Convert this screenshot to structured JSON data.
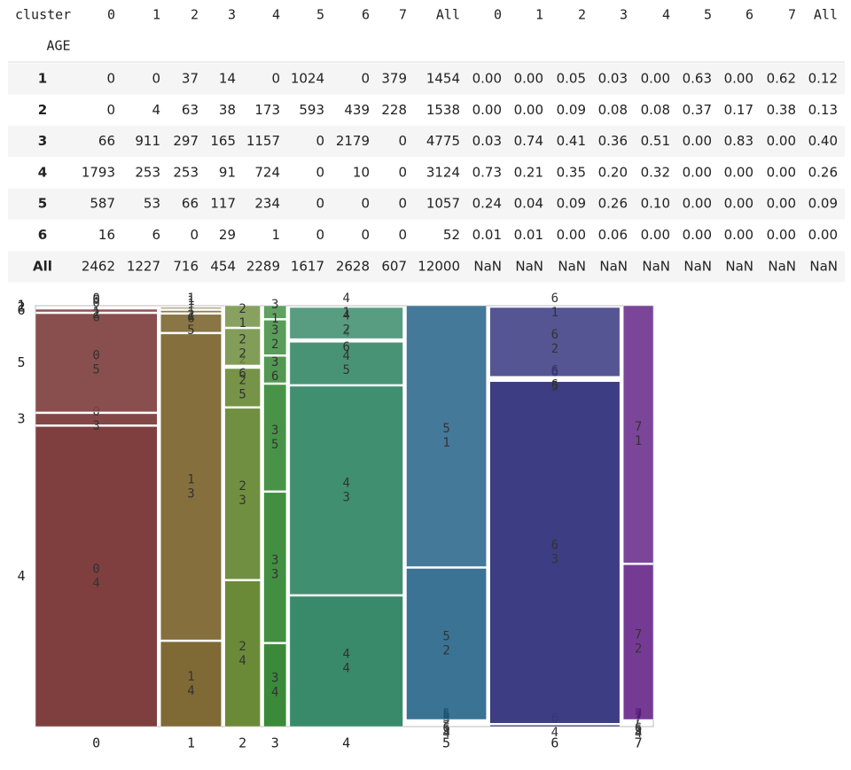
{
  "table": {
    "header": [
      "cluster",
      "0",
      "1",
      "2",
      "3",
      "4",
      "5",
      "6",
      "7",
      "All",
      "0",
      "1",
      "2",
      "3",
      "4",
      "5",
      "6",
      "7",
      "All"
    ],
    "index_name": "AGE",
    "rows": [
      {
        "label": "1",
        "cells": [
          0,
          0,
          37,
          14,
          0,
          1024,
          0,
          379,
          1454,
          "0.00",
          "0.00",
          "0.05",
          "0.03",
          "0.00",
          "0.63",
          "0.00",
          "0.62",
          "0.12"
        ]
      },
      {
        "label": "2",
        "cells": [
          0,
          4,
          63,
          38,
          173,
          593,
          439,
          228,
          1538,
          "0.00",
          "0.00",
          "0.09",
          "0.08",
          "0.08",
          "0.37",
          "0.17",
          "0.38",
          "0.13"
        ]
      },
      {
        "label": "3",
        "cells": [
          66,
          911,
          297,
          165,
          1157,
          0,
          2179,
          0,
          4775,
          "0.03",
          "0.74",
          "0.41",
          "0.36",
          "0.51",
          "0.00",
          "0.83",
          "0.00",
          "0.40"
        ]
      },
      {
        "label": "4",
        "cells": [
          1793,
          253,
          253,
          91,
          724,
          0,
          10,
          0,
          3124,
          "0.73",
          "0.21",
          "0.35",
          "0.20",
          "0.32",
          "0.00",
          "0.00",
          "0.00",
          "0.26"
        ]
      },
      {
        "label": "5",
        "cells": [
          587,
          53,
          66,
          117,
          234,
          0,
          0,
          0,
          1057,
          "0.24",
          "0.04",
          "0.09",
          "0.26",
          "0.10",
          "0.00",
          "0.00",
          "0.00",
          "0.09"
        ]
      },
      {
        "label": "6",
        "cells": [
          16,
          6,
          0,
          29,
          1,
          0,
          0,
          0,
          52,
          "0.01",
          "0.01",
          "0.00",
          "0.06",
          "0.00",
          "0.00",
          "0.00",
          "0.00",
          "0.00"
        ]
      },
      {
        "label": "All",
        "cells": [
          2462,
          1227,
          716,
          454,
          2289,
          1617,
          2628,
          607,
          12000,
          "NaN",
          "NaN",
          "NaN",
          "NaN",
          "NaN",
          "NaN",
          "NaN",
          "NaN",
          "NaN"
        ]
      }
    ]
  },
  "mosaic": {
    "type": "mosaic",
    "stack_order": [
      "4",
      "3",
      "5",
      "6",
      "2",
      "1"
    ],
    "colors": [
      "#7f3f3f",
      "#7f6935",
      "#6a8a38",
      "#3a8a3a",
      "#388a6a",
      "#16587f",
      "#35357f",
      "#5a167f"
    ]
  }
}
